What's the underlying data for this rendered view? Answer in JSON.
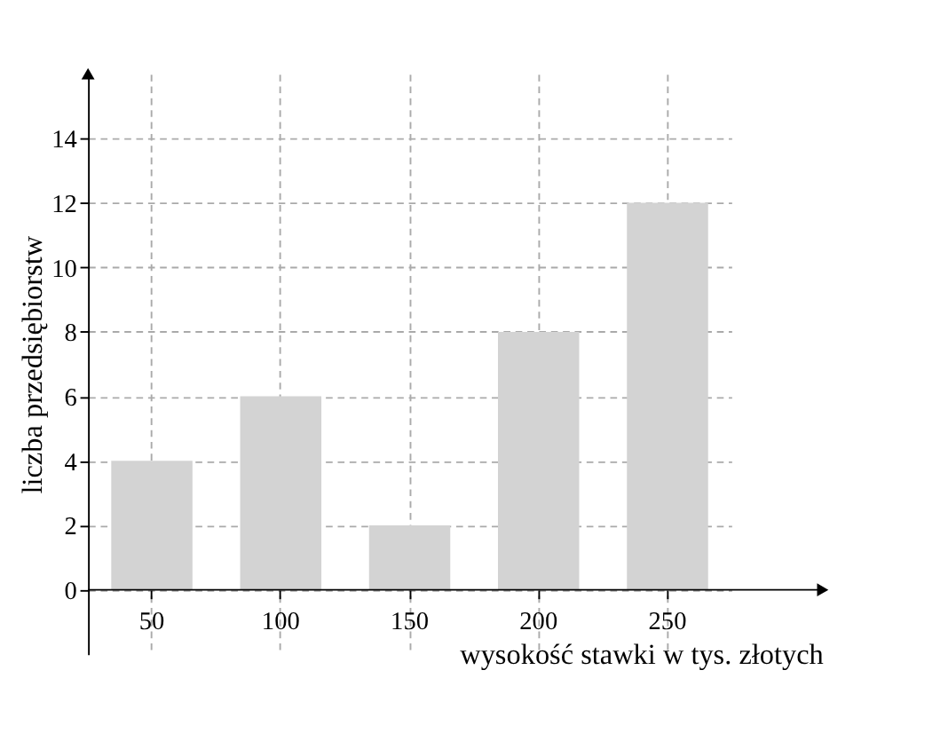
{
  "chart_data": {
    "type": "bar",
    "xlabel": "wysokość stawki w tys. złotych",
    "ylabel": "liczba przedsiębiorstw",
    "categories": [
      "50",
      "100",
      "150",
      "200",
      "250"
    ],
    "values": [
      4,
      6,
      2,
      8,
      12
    ],
    "color": "#d3d3d3",
    "ylim": [
      -2,
      16
    ],
    "yticks": [
      0,
      2,
      4,
      6,
      8,
      10,
      12,
      14
    ],
    "grid": true
  }
}
